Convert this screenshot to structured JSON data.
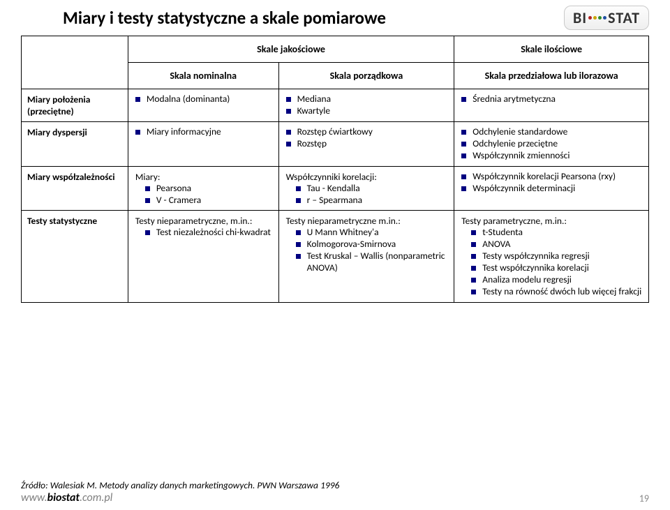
{
  "title": "Miary i testy statystyczne a skale pomiarowe",
  "logo": {
    "text_left": "BI",
    "text_right": "STAT",
    "dot_colors": [
      "#b22222",
      "#c9a400",
      "#2e8b2e",
      "#1f4fa3"
    ]
  },
  "headers": {
    "jakosciowe": "Skale jakościowe",
    "ilosciowe": "Skale ilościowe",
    "nominalna": "Skala nominalna",
    "porzadkowa": "Skala porządkowa",
    "przedzialowa": "Skala przedziałowa lub ilorazowa"
  },
  "rows": {
    "polozenia": {
      "label": "Miary położenia (przeciętne)",
      "c1": [
        "Modalna (dominanta)"
      ],
      "c2": [
        "Mediana",
        "Kwartyle"
      ],
      "c3": [
        "Średnia arytmetyczna"
      ]
    },
    "dyspersji": {
      "label": "Miary dyspersji",
      "c1": [
        "Miary informacyjne"
      ],
      "c2": [
        "Rozstęp ćwiartkowy",
        "Rozstęp"
      ],
      "c3": [
        "Odchylenie standardowe",
        "Odchylenie przeciętne",
        " Współczynnik zmienności"
      ]
    },
    "wspolz": {
      "label": "Miary współzależności",
      "c1_lead": "Miary:",
      "c1": [
        "Pearsona",
        "V - Cramera"
      ],
      "c2_lead": "Współczynniki korelacji:",
      "c2": [
        "Tau - Kendalla",
        "r – Spearmana"
      ],
      "c3": [
        "Współczynnik korelacji Pearsona (rxy)",
        "Współczynnik determinacji"
      ]
    },
    "testy": {
      "label": "Testy statystyczne",
      "c1_lead": "Testy nieparametryczne, m.in.:",
      "c1": [
        "Test niezależności chi-kwadrat"
      ],
      "c2_lead": "Testy nieparametryczne m.in.:",
      "c2": [
        "U Mann Whitney'a",
        "Kolmogorova-Smirnova",
        "Test Kruskal – Wallis (nonparametric ANOVA)"
      ],
      "c3_lead": "Testy parametryczne, m.in.:",
      "c3": [
        "t-Studenta",
        "ANOVA",
        "Testy współczynnika regresji",
        "Test współczynnika korelacji",
        "Analiza modelu regresji",
        "Testy na równość dwóch lub więcej frakcji"
      ]
    }
  },
  "source": "Źródło: Walesiak M. Metody analizy danych marketingowych. PWN Warszawa 1996",
  "url_bold": "biostat",
  "url_prefix": "www.",
  "url_suffix": ".com.pl",
  "page_number": "19",
  "bullet_color": "#000080"
}
